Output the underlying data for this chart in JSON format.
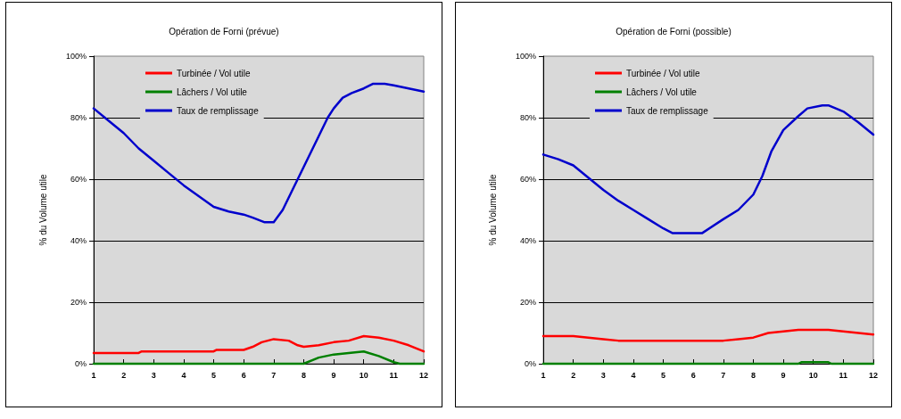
{
  "chart_data": [
    {
      "type": "line",
      "title": "Opération de Forni (prévue)",
      "ylabel": "% du Volume utile",
      "xlim": [
        1,
        12
      ],
      "xticks": [
        1,
        2,
        3,
        4,
        5,
        6,
        7,
        8,
        9,
        10,
        11,
        12
      ],
      "ylim": [
        0,
        100
      ],
      "yticks": [
        {
          "value": 0,
          "label": "0%"
        },
        {
          "value": 20,
          "label": "20%"
        },
        {
          "value": 40,
          "label": "40%"
        },
        {
          "value": 60,
          "label": "60%"
        },
        {
          "value": 80,
          "label": "80%"
        },
        {
          "value": 100,
          "label": "100%"
        }
      ],
      "grid": "y",
      "legend": "top left",
      "marker": "none",
      "line_style": "solid",
      "series": [
        {
          "name": "Turbinée / Vol utile",
          "color": "#ff0000",
          "x": [
            1,
            2,
            2.5,
            2.6,
            5,
            5.1,
            6,
            6.3,
            6.6,
            7,
            7.5,
            7.8,
            8,
            8.5,
            9,
            9.5,
            10,
            10.5,
            11,
            11.5,
            12
          ],
          "values": [
            3.5,
            3.5,
            3.5,
            4,
            4,
            4.5,
            4.5,
            5.5,
            7,
            8,
            7.5,
            6,
            5.5,
            6,
            7,
            7.5,
            9,
            8.5,
            7.5,
            6,
            4
          ]
        },
        {
          "name": "Lâchers / Vol utile",
          "color": "#008000",
          "x": [
            1,
            8,
            8.5,
            9,
            9.5,
            10,
            10.5,
            11,
            11.2,
            12
          ],
          "values": [
            0,
            0,
            2,
            3,
            3.5,
            4,
            2.5,
            0.5,
            0,
            0
          ]
        },
        {
          "name": "Taux de remplissage",
          "color": "#0000cc",
          "x": [
            1,
            1.5,
            2,
            2.5,
            3,
            3.5,
            4,
            4.5,
            5,
            5.5,
            6,
            6.3,
            6.7,
            7,
            7.3,
            7.6,
            8,
            8.5,
            8.8,
            9,
            9.3,
            9.6,
            10,
            10.3,
            10.7,
            11,
            11.5,
            12
          ],
          "values": [
            83,
            79,
            75,
            70,
            66,
            62,
            58,
            54.5,
            51,
            49.5,
            48.5,
            47.5,
            46,
            46,
            50,
            56,
            64,
            74,
            80,
            83,
            86.5,
            88,
            89.5,
            91,
            91,
            90.5,
            89.5,
            88.5
          ]
        }
      ]
    },
    {
      "type": "line",
      "title": "Opération de Forni (possible)",
      "ylabel": "% du Volume utile",
      "xlim": [
        1,
        12
      ],
      "xticks": [
        1,
        2,
        3,
        4,
        5,
        6,
        7,
        8,
        9,
        10,
        11,
        12
      ],
      "ylim": [
        0,
        100
      ],
      "yticks": [
        {
          "value": 0,
          "label": "0%"
        },
        {
          "value": 20,
          "label": "20%"
        },
        {
          "value": 40,
          "label": "40%"
        },
        {
          "value": 60,
          "label": "60%"
        },
        {
          "value": 80,
          "label": "80%"
        },
        {
          "value": 100,
          "label": "100%"
        }
      ],
      "grid": "y",
      "legend": "top left",
      "marker": "none",
      "line_style": "solid",
      "series": [
        {
          "name": "Turbinée / Vol utile",
          "color": "#ff0000",
          "x": [
            1,
            2,
            2.5,
            3,
            3.5,
            7,
            7.5,
            8,
            8.5,
            9,
            9.5,
            10,
            10.5,
            11,
            11.5,
            12
          ],
          "values": [
            9,
            9,
            8.5,
            8,
            7.5,
            7.5,
            8,
            8.5,
            10,
            10.5,
            11,
            11,
            11,
            10.5,
            10,
            9.5
          ]
        },
        {
          "name": "Lâchers / Vol utile",
          "color": "#008000",
          "x": [
            1,
            9.5,
            9.6,
            10.5,
            10.6,
            12
          ],
          "values": [
            0,
            0,
            0.5,
            0.5,
            0,
            0
          ]
        },
        {
          "name": "Taux de remplissage",
          "color": "#0000cc",
          "x": [
            1,
            1.5,
            2,
            2.5,
            3,
            3.5,
            4,
            4.5,
            5,
            5.3,
            6,
            6.3,
            7,
            7.5,
            8,
            8.3,
            8.6,
            9,
            9.5,
            9.8,
            10.3,
            10.5,
            11,
            11.5,
            12
          ],
          "values": [
            68,
            66.5,
            64.5,
            60.5,
            56.5,
            53,
            50,
            47,
            44,
            42.5,
            42.5,
            42.5,
            47,
            50,
            55,
            61,
            69,
            76,
            80.5,
            83,
            84,
            84,
            82,
            78.5,
            74.5
          ]
        }
      ]
    }
  ]
}
